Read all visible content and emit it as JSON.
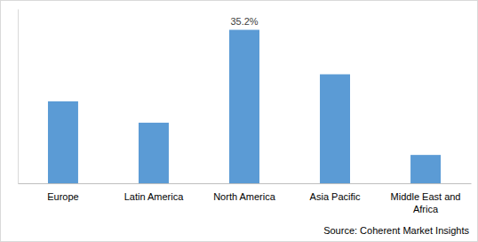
{
  "chart_data": {
    "type": "bar",
    "categories": [
      "Europe",
      "Latin America",
      "North America",
      "Asia Pacific",
      "Middle East and Africa"
    ],
    "values": [
      18.8,
      13.9,
      35.2,
      25.0,
      6.5
    ],
    "value_labels": [
      null,
      null,
      "35.2%",
      null,
      null
    ],
    "data_labels": true,
    "color": "#5b9bd5",
    "ylim": [
      0,
      40
    ],
    "grid": false,
    "tick_labels": "x",
    "source": "Source: Coherent Market Insights"
  }
}
